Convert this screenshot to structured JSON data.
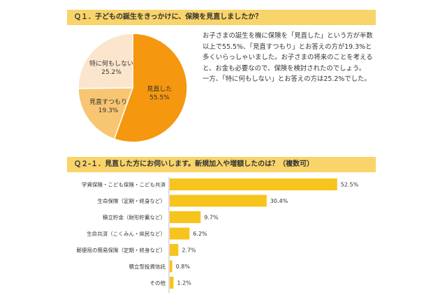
{
  "q1": {
    "title": "Ｑ１．子どもの誕生をきっかけに、保険を見直しましたか？",
    "description": [
      "お子さまの誕生を機に保険を「見直した」という方が半数以上で55.5%、「見直すつもり」とお答えの方が19.3%と多くいらっしゃいました。お子さまの将来のことを考えると、お金も必要なので、保険を検討されたのでしょう。",
      "一方、「特に何もしない」とお答えの方は25.2%でした。"
    ]
  },
  "q2": {
    "title": "Ｑ２-１．見直した方にお伺いします。新規加入や増額したのは？（複数可）"
  },
  "colors": {
    "header_bg": "#f9d46a",
    "pie_main": "#f5970f",
    "pie_mid": "#f8c673",
    "pie_light": "#fbe6cd",
    "bar": "#f7c41d"
  },
  "chart_data": [
    {
      "type": "pie",
      "slices": [
        {
          "label": "見直した",
          "value": 55.5,
          "value_label": "55.5%"
        },
        {
          "label": "見直すつもり",
          "value": 19.3,
          "value_label": "19.3%"
        },
        {
          "label": "特に何もしない",
          "value": 25.2,
          "value_label": "25.2%"
        }
      ]
    },
    {
      "type": "bar",
      "orientation": "horizontal",
      "categories": [
        "学資保険・こども保険・こども共済",
        "生命保険（定期・終身など）",
        "積立貯金（財形貯蓄など）",
        "生命共済（こくみん・県民など）",
        "郵便局の簡易保険（定期・終身など）",
        "積立型投資信託",
        "その他"
      ],
      "values": [
        52.5,
        30.4,
        9.7,
        6.2,
        2.7,
        0.8,
        1.2
      ],
      "value_labels": [
        "52.5%",
        "30.4%",
        "9.7%",
        "6.2%",
        "2.7%",
        "0.8%",
        "1.2%"
      ],
      "xlim": [
        0,
        60
      ]
    }
  ]
}
